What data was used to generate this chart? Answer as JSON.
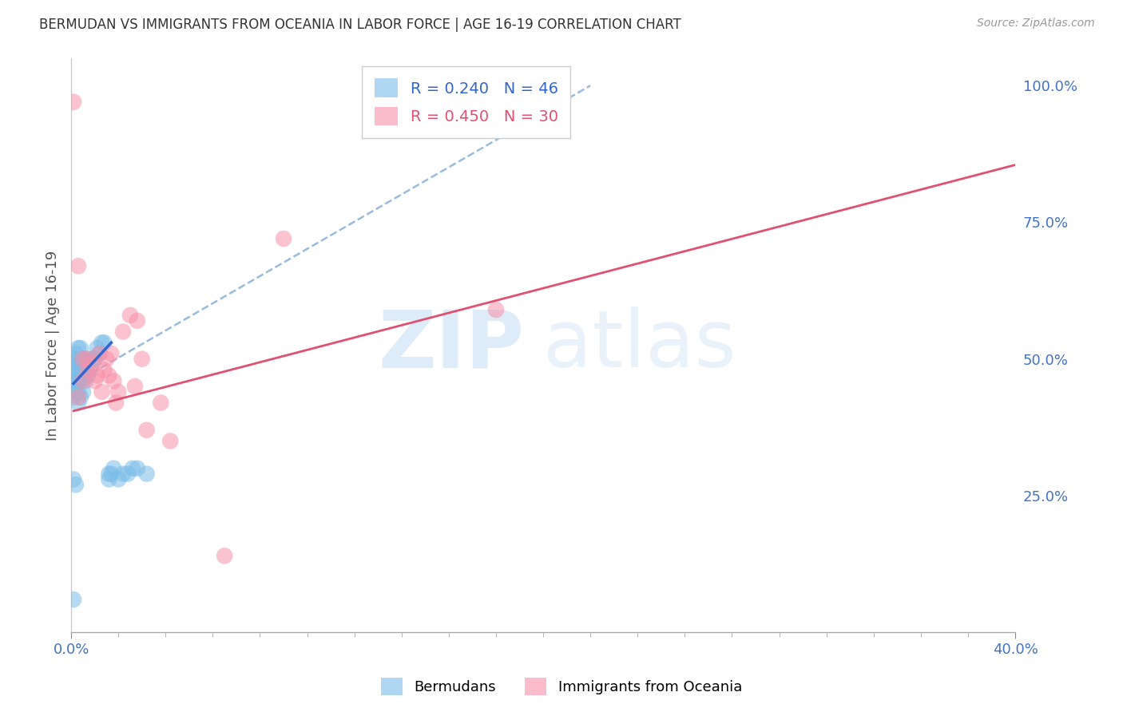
{
  "title": "BERMUDAN VS IMMIGRANTS FROM OCEANIA IN LABOR FORCE | AGE 16-19 CORRELATION CHART",
  "source": "Source: ZipAtlas.com",
  "ylabel": "In Labor Force | Age 16-19",
  "xlim": [
    0.0,
    0.4
  ],
  "ylim": [
    0.0,
    1.05
  ],
  "x_ticks": [
    0.0,
    0.4
  ],
  "x_tick_labels": [
    "0.0%",
    "40.0%"
  ],
  "y_ticks_right": [
    0.25,
    0.5,
    0.75,
    1.0
  ],
  "y_tick_labels_right": [
    "25.0%",
    "50.0%",
    "75.0%",
    "100.0%"
  ],
  "legend_blue_r": "R = 0.240",
  "legend_blue_n": "N = 46",
  "legend_pink_r": "R = 0.450",
  "legend_pink_n": "N = 30",
  "blue_color": "#7abde8",
  "pink_color": "#f890a8",
  "blue_line_color": "#3366cc",
  "pink_line_color": "#e05070",
  "dashed_line_color": "#99bbdd",
  "watermark_zip": "ZIP",
  "watermark_atlas": "atlas",
  "blue_dots_x": [
    0.001,
    0.001,
    0.001,
    0.001,
    0.001,
    0.002,
    0.002,
    0.002,
    0.002,
    0.003,
    0.003,
    0.003,
    0.003,
    0.003,
    0.003,
    0.004,
    0.004,
    0.004,
    0.004,
    0.005,
    0.005,
    0.005,
    0.006,
    0.006,
    0.007,
    0.007,
    0.008,
    0.009,
    0.01,
    0.011,
    0.012,
    0.013,
    0.014,
    0.016,
    0.016,
    0.017,
    0.018,
    0.02,
    0.022,
    0.024,
    0.026,
    0.028,
    0.032,
    0.001,
    0.002,
    0.001
  ],
  "blue_dots_y": [
    0.43,
    0.45,
    0.47,
    0.49,
    0.5,
    0.44,
    0.46,
    0.48,
    0.51,
    0.42,
    0.44,
    0.46,
    0.48,
    0.5,
    0.52,
    0.43,
    0.46,
    0.49,
    0.52,
    0.44,
    0.47,
    0.5,
    0.46,
    0.49,
    0.47,
    0.5,
    0.48,
    0.5,
    0.5,
    0.52,
    0.51,
    0.53,
    0.53,
    0.28,
    0.29,
    0.29,
    0.3,
    0.28,
    0.29,
    0.29,
    0.3,
    0.3,
    0.29,
    0.06,
    0.27,
    0.28
  ],
  "pink_dots_x": [
    0.001,
    0.003,
    0.003,
    0.005,
    0.005,
    0.007,
    0.007,
    0.009,
    0.01,
    0.011,
    0.012,
    0.013,
    0.014,
    0.015,
    0.016,
    0.017,
    0.018,
    0.019,
    0.02,
    0.022,
    0.025,
    0.027,
    0.028,
    0.03,
    0.032,
    0.038,
    0.042,
    0.065,
    0.09,
    0.18
  ],
  "pink_dots_y": [
    0.97,
    0.67,
    0.43,
    0.5,
    0.46,
    0.5,
    0.48,
    0.49,
    0.46,
    0.47,
    0.51,
    0.44,
    0.48,
    0.5,
    0.47,
    0.51,
    0.46,
    0.42,
    0.44,
    0.55,
    0.58,
    0.45,
    0.57,
    0.5,
    0.37,
    0.42,
    0.35,
    0.14,
    0.72,
    0.59
  ],
  "blue_trend_x": [
    0.001,
    0.017
  ],
  "blue_trend_y": [
    0.455,
    0.53
  ],
  "pink_trend_x": [
    0.001,
    0.4
  ],
  "pink_trend_y": [
    0.405,
    0.855
  ],
  "dashed_trend_x": [
    0.001,
    0.22
  ],
  "dashed_trend_y": [
    0.455,
    1.0
  ]
}
